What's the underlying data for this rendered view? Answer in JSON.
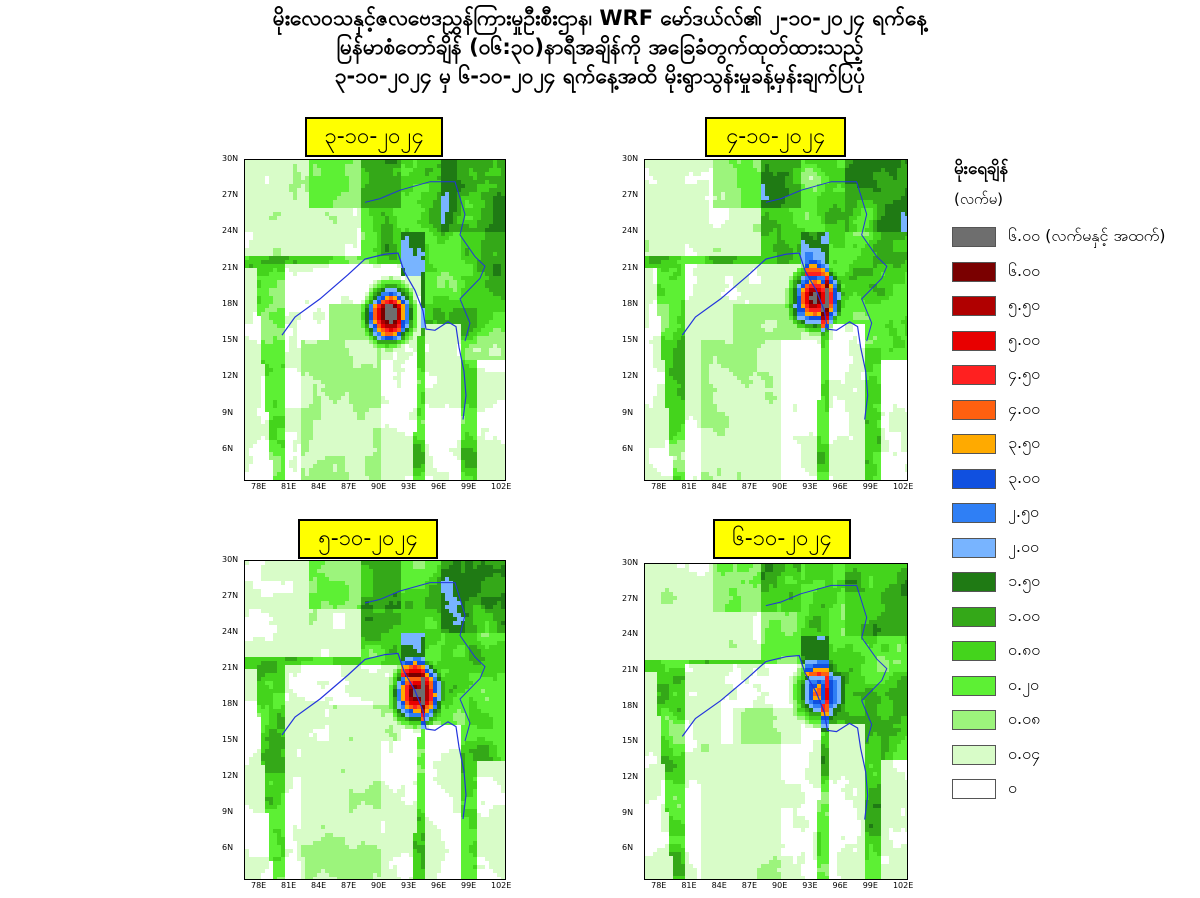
{
  "title": {
    "line1": "မိုးလေဝသနှင့်ဇလဗေဒညွှန်ကြားမှုဦးစီးဌာန၊ WRF မော်ဒယ်လ်၏ ၂-၁၀-၂၀၂၄ ရက်နေ့",
    "line2": "မြန်မာစံတော်ချိန် (၀၆:၃၀)နာရီအချိန်ကို အခြေခံတွက်ထုတ်ထားသည့်",
    "line3": "၃-၁၀-၂၀၂၄ မှ ၆-၁၀-၂၀၂၄ ရက်နေ့အထိ မိုးရွာသွန်းမှုခန့်မှန်းချက်ပြပုံ"
  },
  "panels": [
    {
      "date": "၃-၁၀-၂၀၂၄",
      "intensity": 1.0,
      "hotspot": {
        "lon": 91.0,
        "lat": 17.3,
        "level": 6
      }
    },
    {
      "date": "၄-၁၀-၂၀၂၄",
      "intensity": 0.8,
      "hotspot": {
        "lon": 93.2,
        "lat": 18.6,
        "level": 6
      }
    },
    {
      "date": "၅-၁၀-၂၀၂၄",
      "intensity": 0.65,
      "hotspot": {
        "lon": 93.6,
        "lat": 19.0,
        "level": 6
      }
    },
    {
      "date": "၆-၁၀-၂၀၂၄",
      "intensity": 0.6,
      "hotspot": {
        "lon": 93.5,
        "lat": 19.2,
        "level": 4
      }
    }
  ],
  "axes": {
    "x_ticks": [
      "78E",
      "81E",
      "84E",
      "87E",
      "90E",
      "93E",
      "96E",
      "99E",
      "102E"
    ],
    "y_ticks": [
      "30N",
      "27N",
      "24N",
      "21N",
      "18N",
      "15N",
      "12N",
      "9N",
      "6N"
    ],
    "lon_range": [
      76.5,
      102.5
    ],
    "lat_range": [
      3.5,
      30.0
    ]
  },
  "legend": {
    "title": "မိုးရေချိန်",
    "unit": "(လက်မ)",
    "items": [
      {
        "label": "၆.၀၀ (လက်မနှင့် အထက်)",
        "color": "#6e6e6e"
      },
      {
        "label": "၆.၀၀",
        "color": "#7a0000"
      },
      {
        "label": "၅.၅၀",
        "color": "#b00000"
      },
      {
        "label": "၅.၀၀",
        "color": "#e80000"
      },
      {
        "label": "၄.၅၀",
        "color": "#ff2020"
      },
      {
        "label": "၄.၀၀",
        "color": "#ff6010"
      },
      {
        "label": "၃.၅၀",
        "color": "#ffaa00"
      },
      {
        "label": "၃.၀၀",
        "color": "#1050e0"
      },
      {
        "label": "၂.၅၀",
        "color": "#2f7ff5"
      },
      {
        "label": "၂.၀၀",
        "color": "#78b4ff"
      },
      {
        "label": "၁.၅၀",
        "color": "#1f7a14"
      },
      {
        "label": "၁.၀၀",
        "color": "#34a818"
      },
      {
        "label": "၀.၈၀",
        "color": "#44d41c"
      },
      {
        "label": "၀.၂၀",
        "color": "#5df034"
      },
      {
        "label": "၀.၀၈",
        "color": "#9cf47c"
      },
      {
        "label": "၀.၀၄",
        "color": "#d8fcc8"
      },
      {
        "label": "၀",
        "color": "#ffffff"
      }
    ]
  }
}
